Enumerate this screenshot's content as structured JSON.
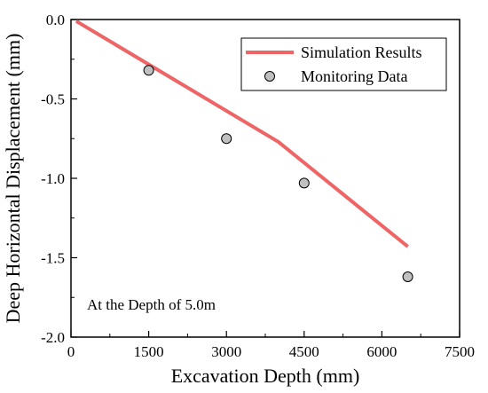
{
  "chart_data": {
    "type": "line",
    "xlabel": "Excavation Depth (mm)",
    "ylabel": "Deep Horizontal Displacement (mm)",
    "xlim": [
      0,
      7500
    ],
    "ylim": [
      -2.0,
      0.0
    ],
    "x_ticks": [
      "0",
      "1500",
      "3000",
      "4500",
      "6000",
      "7500"
    ],
    "y_ticks": [
      "0.0",
      "-0.5",
      "-1.0",
      "-1.5",
      "-2.0"
    ],
    "grid": false,
    "legend_position": "top-right",
    "annotation": "At the Depth of 5.0m",
    "series": [
      {
        "name": "Simulation Results",
        "kind": "line",
        "color": "#ef6464",
        "x": [
          100,
          4000,
          6500
        ],
        "y": [
          -0.01,
          -0.77,
          -1.43
        ]
      },
      {
        "name": "Monitoring Data",
        "kind": "scatter",
        "color": "#c0c0c0",
        "x": [
          1500,
          3000,
          4500,
          6500
        ],
        "y": [
          -0.32,
          -0.75,
          -1.03,
          -1.62
        ]
      }
    ]
  }
}
